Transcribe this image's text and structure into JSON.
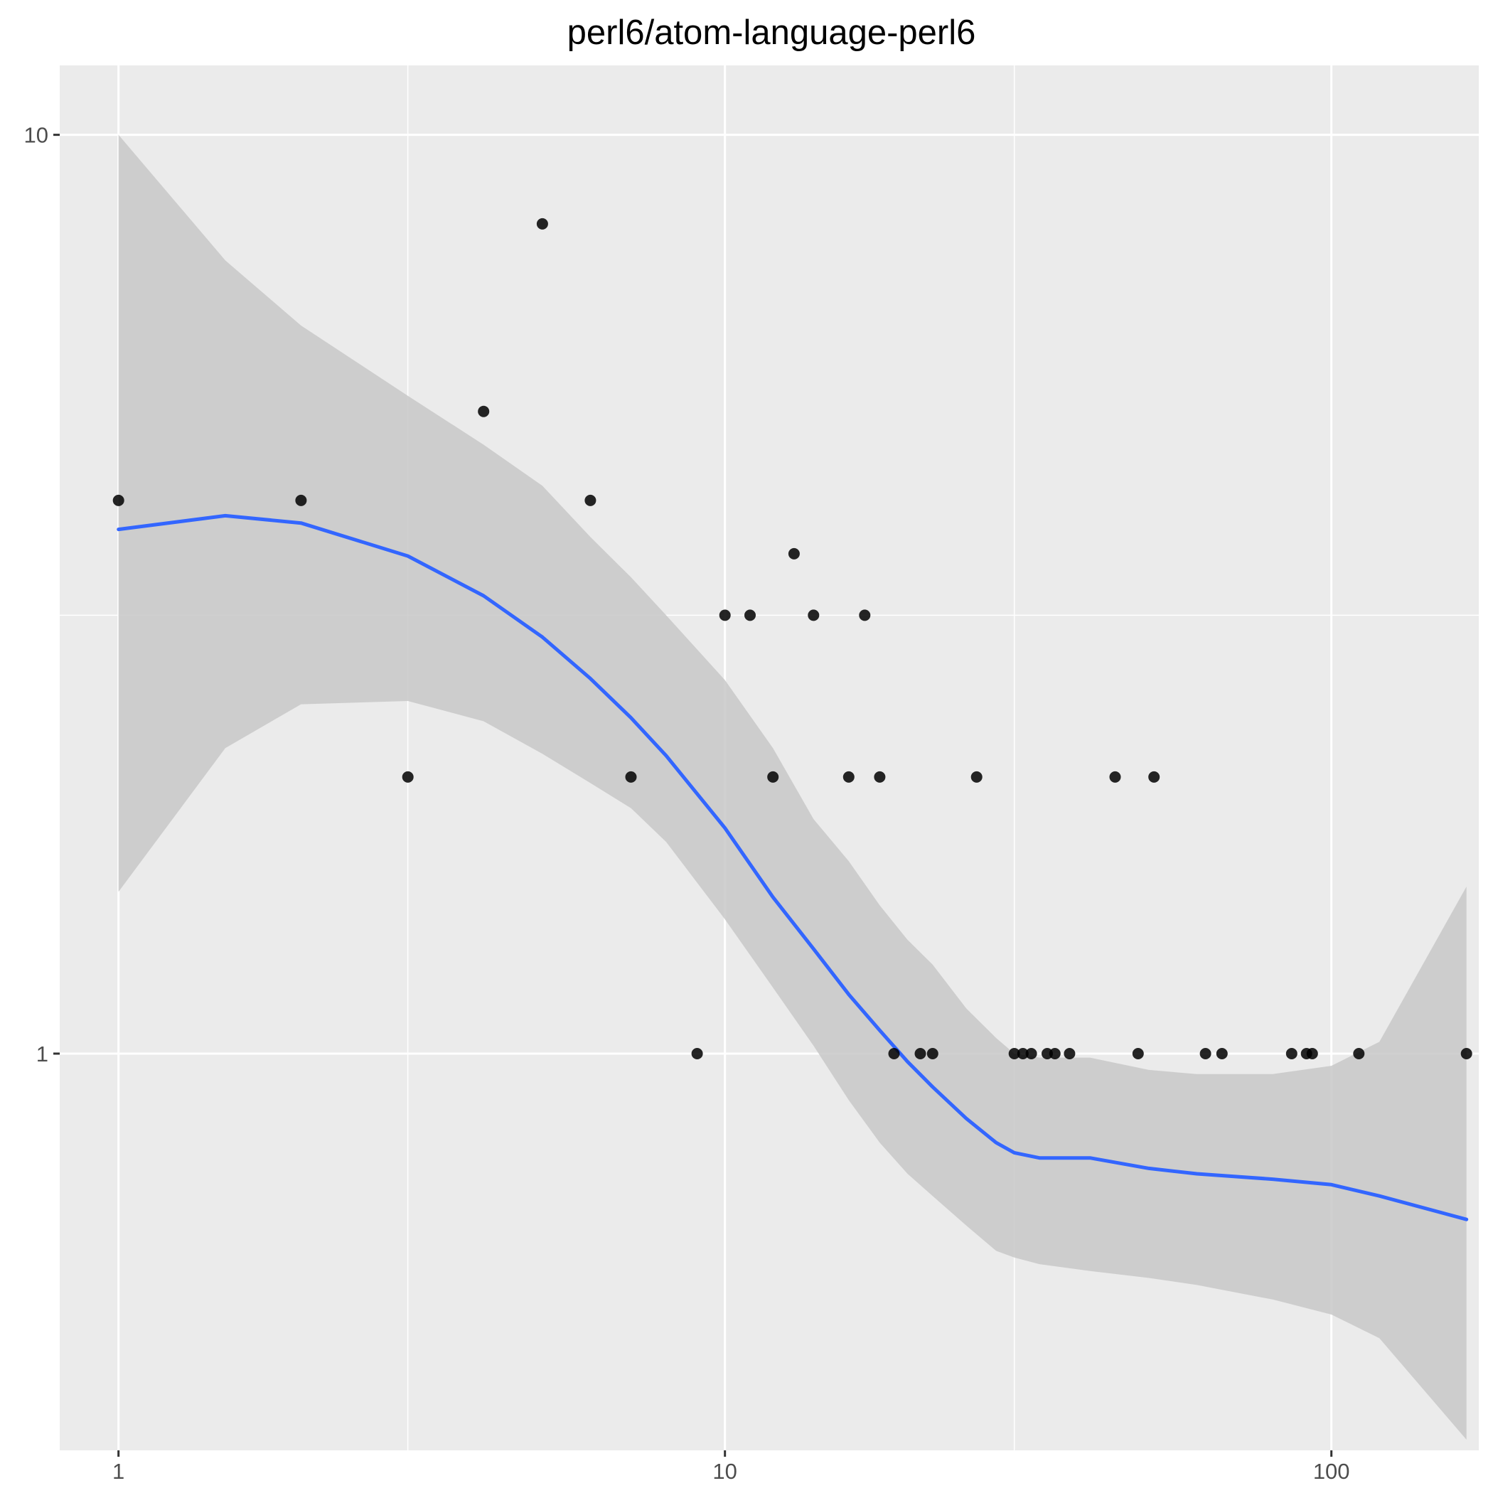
{
  "chart_data": {
    "type": "scatter",
    "title": "perl6/atom-language-perl6",
    "xlabel": "",
    "ylabel": "",
    "x_scale": "log10",
    "y_scale": "log10",
    "xlim": [
      0.8,
      175
    ],
    "ylim": [
      0.37,
      11.9
    ],
    "grid": true,
    "legend": "none",
    "x_ticks": [
      {
        "value": 1,
        "label": "1"
      },
      {
        "value": 10,
        "label": "10"
      },
      {
        "value": 100,
        "label": "100"
      }
    ],
    "y_ticks": [
      {
        "value": 1,
        "label": "1"
      },
      {
        "value": 10,
        "label": "10"
      }
    ],
    "x_minor_ticks": [
      3,
      30
    ],
    "y_minor_ticks": [
      3
    ],
    "colors": {
      "panel": "#ebebeb",
      "grid": "#ffffff",
      "points": "#000000",
      "smooth_line": "#3366ff",
      "ribbon": "#c8c8c8"
    },
    "points": [
      {
        "x": 1,
        "y": 4
      },
      {
        "x": 2,
        "y": 4
      },
      {
        "x": 3,
        "y": 2
      },
      {
        "x": 4,
        "y": 5
      },
      {
        "x": 5,
        "y": 8
      },
      {
        "x": 6,
        "y": 4
      },
      {
        "x": 7,
        "y": 2
      },
      {
        "x": 9,
        "y": 1
      },
      {
        "x": 10,
        "y": 3
      },
      {
        "x": 11,
        "y": 3
      },
      {
        "x": 12,
        "y": 2
      },
      {
        "x": 13,
        "y": 3.5
      },
      {
        "x": 14,
        "y": 3
      },
      {
        "x": 16,
        "y": 2
      },
      {
        "x": 17,
        "y": 3
      },
      {
        "x": 18,
        "y": 2
      },
      {
        "x": 19,
        "y": 1
      },
      {
        "x": 21,
        "y": 1
      },
      {
        "x": 22,
        "y": 1
      },
      {
        "x": 26,
        "y": 2
      },
      {
        "x": 30,
        "y": 1
      },
      {
        "x": 31,
        "y": 1
      },
      {
        "x": 32,
        "y": 1
      },
      {
        "x": 34,
        "y": 1
      },
      {
        "x": 35,
        "y": 1
      },
      {
        "x": 37,
        "y": 1
      },
      {
        "x": 44,
        "y": 2
      },
      {
        "x": 48,
        "y": 1
      },
      {
        "x": 51,
        "y": 2
      },
      {
        "x": 62,
        "y": 1
      },
      {
        "x": 66,
        "y": 1
      },
      {
        "x": 86,
        "y": 1
      },
      {
        "x": 91,
        "y": 1
      },
      {
        "x": 93,
        "y": 1
      },
      {
        "x": 111,
        "y": 1
      },
      {
        "x": 167,
        "y": 1
      }
    ],
    "smooth": {
      "x": [
        1,
        1.5,
        2,
        3,
        4,
        5,
        6,
        7,
        8,
        10,
        12,
        14,
        16,
        18,
        20,
        22,
        25,
        28,
        30,
        33,
        40,
        50,
        60,
        80,
        100,
        120,
        167
      ],
      "y": [
        3.72,
        3.85,
        3.78,
        3.48,
        3.15,
        2.84,
        2.56,
        2.32,
        2.11,
        1.76,
        1.48,
        1.3,
        1.16,
        1.06,
        0.98,
        0.92,
        0.85,
        0.8,
        0.78,
        0.77,
        0.77,
        0.75,
        0.74,
        0.73,
        0.72,
        0.7,
        0.66
      ],
      "lower": [
        1.5,
        2.15,
        2.4,
        2.42,
        2.3,
        2.12,
        1.97,
        1.85,
        1.7,
        1.4,
        1.18,
        1.02,
        0.89,
        0.8,
        0.74,
        0.7,
        0.65,
        0.61,
        0.6,
        0.59,
        0.58,
        0.57,
        0.56,
        0.54,
        0.52,
        0.49,
        0.38
      ],
      "upper": [
        10,
        7.3,
        6.2,
        5.2,
        4.6,
        4.15,
        3.65,
        3.3,
        3.0,
        2.55,
        2.15,
        1.8,
        1.62,
        1.45,
        1.33,
        1.25,
        1.12,
        1.04,
        1.0,
        0.99,
        0.99,
        0.96,
        0.95,
        0.95,
        0.97,
        1.03,
        1.52
      ]
    }
  }
}
